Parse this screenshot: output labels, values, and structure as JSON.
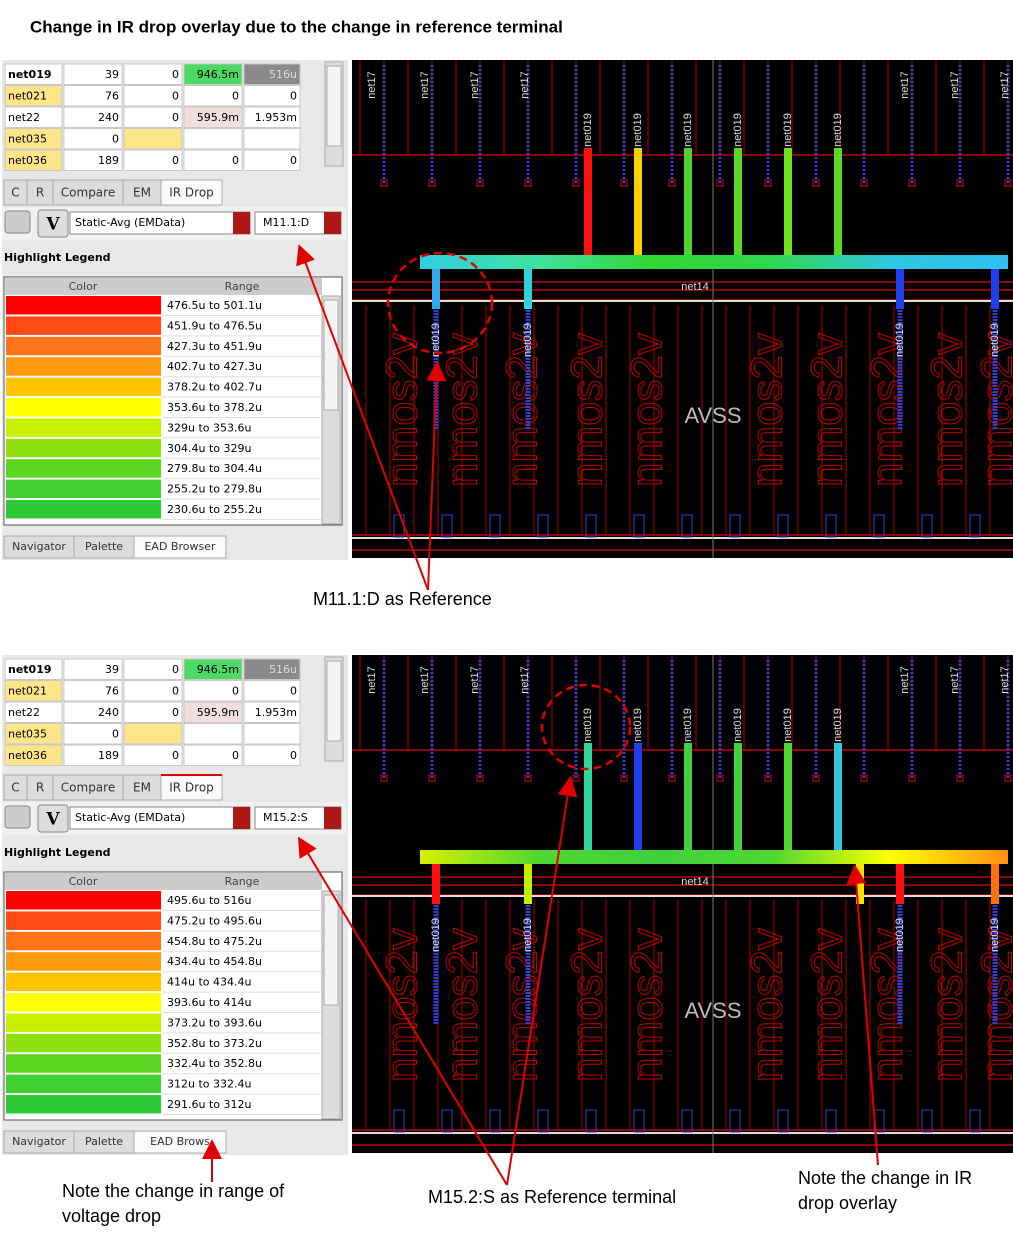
{
  "title": "Change in IR drop overlay due to the change in reference terminal",
  "panels": [
    {
      "table": [
        [
          "net019",
          "39",
          "0",
          "946.5m",
          "516u"
        ],
        [
          "net021",
          "76",
          "0",
          "0",
          "0"
        ],
        [
          "net22",
          "240",
          "0",
          "595.9m",
          "1.953m"
        ],
        [
          "net035",
          "0"
        ],
        [
          "net036",
          "189",
          "0",
          "0",
          "0"
        ]
      ],
      "tabs": [
        "C",
        "R",
        "Compare",
        "EM",
        "IR Drop"
      ],
      "button": "V",
      "analysis": "Static-Avg (EMData)",
      "reference": "M11.1:D",
      "legend_title": "Highlight Legend",
      "legend_headers": [
        "Color",
        "Range"
      ],
      "legend": [
        {
          "range": "476.5u to 501.1u",
          "color": "#ff0000"
        },
        {
          "range": "451.9u to 476.5u",
          "color": "#ff4a14"
        },
        {
          "range": "427.3u to 451.9u",
          "color": "#ff7418"
        },
        {
          "range": "402.7u to 427.3u",
          "color": "#ff9a10"
        },
        {
          "range": "378.2u to 402.7u",
          "color": "#ffc400"
        },
        {
          "range": "353.6u to 378.2u",
          "color": "#ffff00"
        },
        {
          "range": "329u to 353.6u",
          "color": "#c6f000"
        },
        {
          "range": "304.4u to 329u",
          "color": "#8fe010"
        },
        {
          "range": "279.8u to 304.4u",
          "color": "#5cd620"
        },
        {
          "range": "255.2u to 279.8u",
          "color": "#40d030"
        },
        {
          "range": "230.6u to 255.2u",
          "color": "#2cc836"
        }
      ],
      "bottom_tabs": [
        "Navigator",
        "Palette",
        "EAD Browser"
      ],
      "layout": {
        "net_labels": [
          "net17",
          "net019",
          "net14"
        ],
        "region": "AVSS",
        "device": "nmos2v",
        "top_stubs": [
          "#ff1010",
          "#ffd000",
          "#50d030",
          "#5ad828",
          "#70e020",
          "#58d828"
        ],
        "bar_colors": [
          "#30d0e0",
          "#40e0a0",
          "#30d830",
          "#30d850",
          "#30c8e0",
          "#30c0f0"
        ],
        "bottom_stubs": [
          "#30a8f0",
          "#30d0e0",
          "#2040f0",
          "#2040f0"
        ]
      }
    },
    {
      "table": [
        [
          "net019",
          "39",
          "0",
          "946.5m",
          "516u"
        ],
        [
          "net021",
          "76",
          "0",
          "0",
          "0"
        ],
        [
          "net22",
          "240",
          "0",
          "595.9m",
          "1.953m"
        ],
        [
          "net035",
          "0"
        ],
        [
          "net036",
          "189",
          "0",
          "0",
          "0"
        ]
      ],
      "tabs": [
        "C",
        "R",
        "Compare",
        "EM",
        "IR Drop"
      ],
      "button": "V",
      "analysis": "Static-Avg (EMData)",
      "reference": "M15.2:S",
      "legend_title": "Highlight Legend",
      "legend_headers": [
        "Color",
        "Range"
      ],
      "legend": [
        {
          "range": "495.6u to 516u",
          "color": "#ff0000"
        },
        {
          "range": "475.2u to 495.6u",
          "color": "#ff4a14"
        },
        {
          "range": "454.8u to 475.2u",
          "color": "#ff7418"
        },
        {
          "range": "434.4u to 454.8u",
          "color": "#ff9a10"
        },
        {
          "range": "414u to 434.4u",
          "color": "#ffc400"
        },
        {
          "range": "393.6u to 414u",
          "color": "#ffff00"
        },
        {
          "range": "373.2u to 393.6u",
          "color": "#c6f000"
        },
        {
          "range": "352.8u to 373.2u",
          "color": "#8fe010"
        },
        {
          "range": "332.4u to 352.8u",
          "color": "#5cd620"
        },
        {
          "range": "312u to 332.4u",
          "color": "#40d030"
        },
        {
          "range": "291.6u to 312u",
          "color": "#2cc836"
        }
      ],
      "bottom_tabs": [
        "Navigator",
        "Palette",
        "EAD Brows"
      ],
      "layout": {
        "net_labels": [
          "net17",
          "net019",
          "net14"
        ],
        "region": "AVSS",
        "device": "nmos2v",
        "top_stubs": [
          "#30d8a0",
          "#2040f0",
          "#40d040",
          "#40d040",
          "#50d830",
          "#30c8e0"
        ],
        "bar_colors": [
          "#d8f000",
          "#50d830",
          "#40d040",
          "#50d830",
          "#ffff00",
          "#ff9010"
        ],
        "bottom_stubs": [
          "#ff1010",
          "#c0f000",
          "#ffe000",
          "#ff1010",
          "#ff7010"
        ]
      }
    }
  ],
  "annotations": [
    [
      "M11.1:D as Reference"
    ],
    [
      "M15.2:S as Reference terminal"
    ],
    [
      "Note the change in range of",
      "voltage drop"
    ],
    [
      "Note the change in IR",
      "drop overlay"
    ]
  ]
}
